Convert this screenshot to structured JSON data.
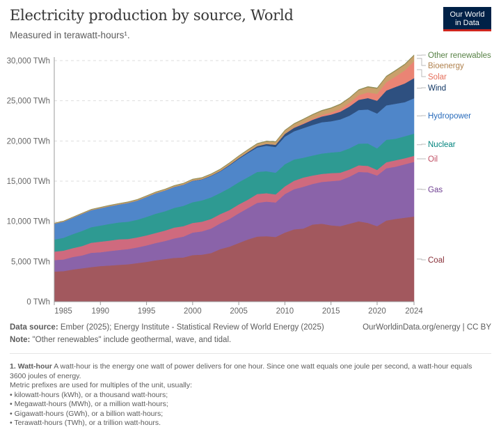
{
  "header": {
    "title": "Electricity production by source, World",
    "subtitle": "Measured in terawatt-hours¹.",
    "logo_line1": "Our World",
    "logo_line2": "in Data"
  },
  "footer": {
    "source_label": "Data source:",
    "source_text": " Ember (2025); Energy Institute - Statistical Review of World Energy (2025)",
    "note_label": "Note:",
    "note_text": " \"Other renewables\" include geothermal, wave, and tidal.",
    "credit": "OurWorldinData.org/energy | CC BY"
  },
  "footnote": {
    "heading": "1. Watt-hour",
    "text": " A watt-hour is the energy one watt of power delivers for one hour. Since one watt equals one joule per second, a watt-hour equals 3600 joules of energy.",
    "line2": "Metric prefixes are used for multiples of the unit, usually:",
    "bullets": [
      "• kilowatt-hours (kWh), or a thousand watt-hours;",
      "• Megawatt-hours (MWh), or a million watt-hours;",
      "• Gigawatt-hours (GWh), or a billion watt-hours;",
      "• Terawatt-hours (TWh), or a trillion watt-hours."
    ]
  },
  "chart_data": {
    "type": "area",
    "stacked": true,
    "title": "Electricity production by source, World",
    "subtitle": "Measured in terawatt-hours¹.",
    "xlim": [
      1985,
      2024
    ],
    "ylim": [
      0,
      30000
    ],
    "x_ticks": [
      "1985",
      "1990",
      "1995",
      "2000",
      "2005",
      "2010",
      "2015",
      "2020",
      "2024"
    ],
    "y_ticks": [
      "0 TWh",
      "5,000 TWh",
      "10,000 TWh",
      "15,000 TWh",
      "20,000 TWh",
      "25,000 TWh",
      "30,000 TWh"
    ],
    "grid": "horizontal dashed",
    "legend": "right, inline labels",
    "x": [
      1985,
      1986,
      1987,
      1988,
      1989,
      1990,
      1991,
      1992,
      1993,
      1994,
      1995,
      1996,
      1997,
      1998,
      1999,
      2000,
      2001,
      2002,
      2003,
      2004,
      2005,
      2006,
      2007,
      2008,
      2009,
      2010,
      2011,
      2012,
      2013,
      2014,
      2015,
      2016,
      2017,
      2018,
      2019,
      2020,
      2021,
      2022,
      2023,
      2024
    ],
    "series": [
      {
        "name": "Coal",
        "color": "#a2585e",
        "label_color": "#883039",
        "values": [
          3750,
          3800,
          4000,
          4150,
          4300,
          4430,
          4500,
          4580,
          4650,
          4800,
          4950,
          5150,
          5300,
          5450,
          5500,
          5800,
          5850,
          6050,
          6550,
          6850,
          7300,
          7750,
          8100,
          8150,
          8050,
          8600,
          9000,
          9100,
          9600,
          9700,
          9500,
          9400,
          9700,
          10000,
          9800,
          9400,
          10100,
          10300,
          10450,
          10600
        ]
      },
      {
        "name": "Gas",
        "color": "#8a63a9",
        "label_color": "#6d3e91",
        "values": [
          1430,
          1450,
          1560,
          1600,
          1780,
          1720,
          1800,
          1850,
          1900,
          1950,
          2050,
          2150,
          2250,
          2420,
          2600,
          2800,
          2900,
          3050,
          3200,
          3450,
          3700,
          3900,
          4200,
          4300,
          4300,
          4800,
          5000,
          5200,
          5050,
          5200,
          5500,
          5700,
          5850,
          6150,
          6300,
          6300,
          6500,
          6500,
          6650,
          6800
        ]
      },
      {
        "name": "Oil",
        "color": "#cf6a7e",
        "label_color": "#c15065",
        "values": [
          1050,
          1100,
          1100,
          1170,
          1250,
          1320,
          1300,
          1330,
          1250,
          1250,
          1250,
          1250,
          1300,
          1350,
          1300,
          1200,
          1200,
          1200,
          1150,
          1100,
          1100,
          1050,
          1100,
          1050,
          1000,
          950,
          1050,
          1150,
          1050,
          1000,
          1000,
          950,
          900,
          820,
          800,
          700,
          750,
          800,
          750,
          750
        ]
      },
      {
        "name": "Nuclear",
        "color": "#2e9a92",
        "label_color": "#00847e",
        "values": [
          1500,
          1600,
          1740,
          1880,
          1940,
          2000,
          2080,
          2100,
          2150,
          2200,
          2300,
          2400,
          2400,
          2450,
          2530,
          2580,
          2650,
          2680,
          2640,
          2750,
          2770,
          2800,
          2750,
          2740,
          2700,
          2760,
          2650,
          2470,
          2490,
          2540,
          2570,
          2610,
          2640,
          2700,
          2790,
          2680,
          2800,
          2680,
          2740,
          2770
        ]
      },
      {
        "name": "Hydropower",
        "color": "#4f86c9",
        "label_color": "#286bbb",
        "values": [
          1980,
          2010,
          2040,
          2120,
          2120,
          2160,
          2200,
          2230,
          2340,
          2380,
          2480,
          2540,
          2580,
          2600,
          2610,
          2650,
          2600,
          2660,
          2670,
          2800,
          2900,
          3000,
          3040,
          3170,
          3200,
          3430,
          3510,
          3680,
          3800,
          3890,
          3880,
          4020,
          4060,
          4180,
          4230,
          4340,
          4280,
          4350,
          4240,
          4400
        ]
      },
      {
        "name": "Wind",
        "color": "#2e5080",
        "label_color": "#0f3563",
        "values": [
          0,
          0,
          0,
          0,
          0,
          4,
          4,
          5,
          6,
          7,
          8,
          10,
          12,
          16,
          21,
          31,
          38,
          52,
          63,
          85,
          104,
          133,
          171,
          221,
          276,
          342,
          437,
          524,
          645,
          712,
          833,
          961,
          1140,
          1270,
          1420,
          1590,
          1850,
          2100,
          2330,
          2500
        ]
      },
      {
        "name": "Solar",
        "color": "#ea8474",
        "label_color": "#e56e5a",
        "values": [
          0,
          0,
          0,
          0,
          0,
          0,
          0,
          0,
          0,
          0,
          0,
          0,
          0,
          0,
          1,
          1,
          1,
          1,
          2,
          3,
          4,
          6,
          8,
          12,
          20,
          32,
          64,
          100,
          140,
          200,
          255,
          330,
          450,
          580,
          710,
          850,
          1030,
          1300,
          1630,
          2100
        ]
      },
      {
        "name": "Bioenergy",
        "color": "#c9a06b",
        "label_color": "#b0814d",
        "values": [
          50,
          55,
          60,
          65,
          70,
          80,
          85,
          90,
          95,
          100,
          110,
          120,
          125,
          130,
          140,
          150,
          160,
          170,
          190,
          210,
          230,
          250,
          270,
          290,
          320,
          370,
          400,
          440,
          470,
          500,
          520,
          560,
          580,
          610,
          640,
          660,
          680,
          690,
          700,
          700
        ]
      },
      {
        "name": "Other renewables",
        "color": "#8f8d55",
        "label_color": "#578145",
        "values": [
          30,
          32,
          34,
          36,
          38,
          40,
          41,
          42,
          43,
          44,
          45,
          46,
          47,
          48,
          50,
          52,
          53,
          54,
          55,
          57,
          60,
          62,
          64,
          66,
          68,
          70,
          72,
          74,
          76,
          78,
          80,
          82,
          84,
          86,
          88,
          90,
          92,
          94,
          97,
          100
        ]
      }
    ]
  }
}
